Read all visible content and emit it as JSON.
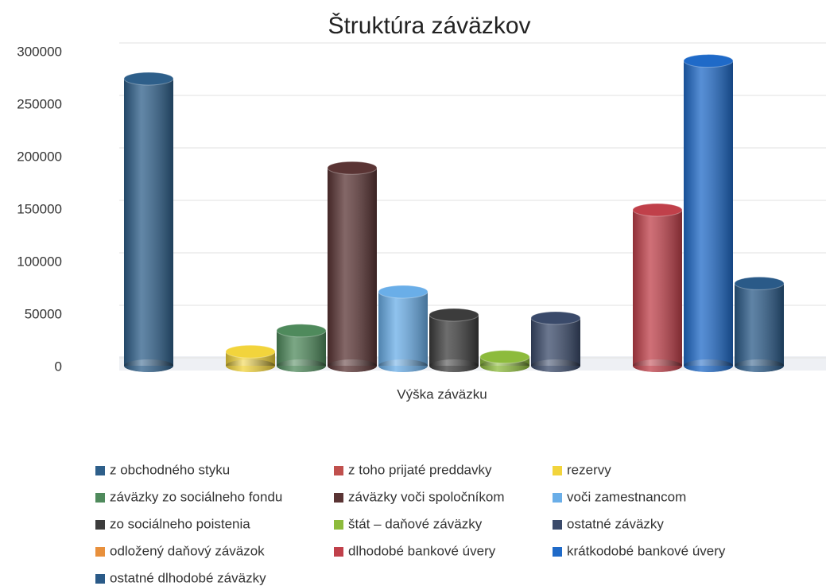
{
  "chart_data": {
    "type": "bar3d",
    "title": "Štruktúra záväzkov",
    "categories": [
      "Výška záväzku"
    ],
    "ylim": [
      0,
      300000
    ],
    "yticks": [
      0,
      50000,
      100000,
      150000,
      200000,
      250000,
      300000
    ],
    "grid": true,
    "legend": "bottom",
    "series": [
      {
        "name": "z obchodného styku",
        "color": "#2e5f8a",
        "values": [
          275000
        ]
      },
      {
        "name": "z toho prijaté preddavky",
        "color": "#c0504d",
        "values": [
          0
        ]
      },
      {
        "name": "rezervy",
        "color": "#f2d43c",
        "values": [
          15000
        ]
      },
      {
        "name": "záväzky zo sociálneho fondu",
        "color": "#4f8a5c",
        "values": [
          35000
        ]
      },
      {
        "name": "záväzky voči spoločníkom",
        "color": "#5a3434",
        "values": [
          190000
        ]
      },
      {
        "name": "voči zamestnancom",
        "color": "#6aaee8",
        "values": [
          72000
        ]
      },
      {
        "name": "zo sociálneho poistenia",
        "color": "#3c3c3c",
        "values": [
          50000
        ]
      },
      {
        "name": "štát – daňové záväzky",
        "color": "#8dbb3c",
        "values": [
          10000
        ]
      },
      {
        "name": "ostatné záväzky",
        "color": "#3a4a6a",
        "values": [
          47000
        ]
      },
      {
        "name": "odložený daňový záväzok",
        "color": "#e8903c",
        "values": [
          0
        ]
      },
      {
        "name": "dlhodobé bankové úvery",
        "color": "#c0404a",
        "values": [
          150000
        ]
      },
      {
        "name": "krátkodobé bankové úvery",
        "color": "#1f6ac8",
        "values": [
          292000
        ]
      },
      {
        "name": "ostatné dlhodobé záväzky",
        "color": "#2a5a88",
        "values": [
          80000
        ]
      }
    ]
  }
}
